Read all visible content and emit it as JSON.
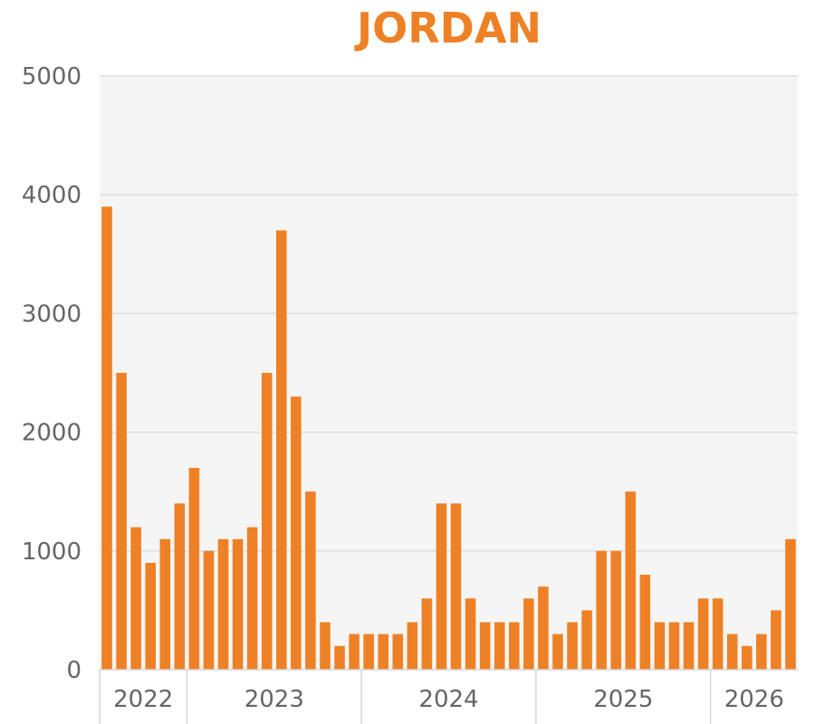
{
  "chart_data": {
    "type": "bar",
    "title": "JORDAN",
    "ylim": [
      0,
      5000
    ],
    "yticks": [
      0,
      1000,
      2000,
      3000,
      4000,
      5000
    ],
    "grid": true,
    "colors": {
      "bar": "#ee8125",
      "plot_background": "#f5f5f5",
      "title": "#ee8125"
    },
    "year_groups": [
      {
        "label": "2022",
        "months": 6
      },
      {
        "label": "2023",
        "months": 12
      },
      {
        "label": "2024",
        "months": 12
      },
      {
        "label": "2025",
        "months": 12
      },
      {
        "label": "2026",
        "months": 6
      }
    ],
    "values": [
      3900,
      2500,
      1200,
      900,
      1100,
      1400,
      1700,
      1000,
      1100,
      1100,
      1200,
      2500,
      3700,
      2300,
      1500,
      400,
      200,
      300,
      300,
      300,
      300,
      400,
      600,
      1400,
      1400,
      600,
      400,
      400,
      400,
      600,
      700,
      300,
      400,
      500,
      1000,
      1000,
      1500,
      800,
      400,
      400,
      400,
      600,
      600,
      300,
      200,
      300,
      500,
      1100
    ]
  }
}
